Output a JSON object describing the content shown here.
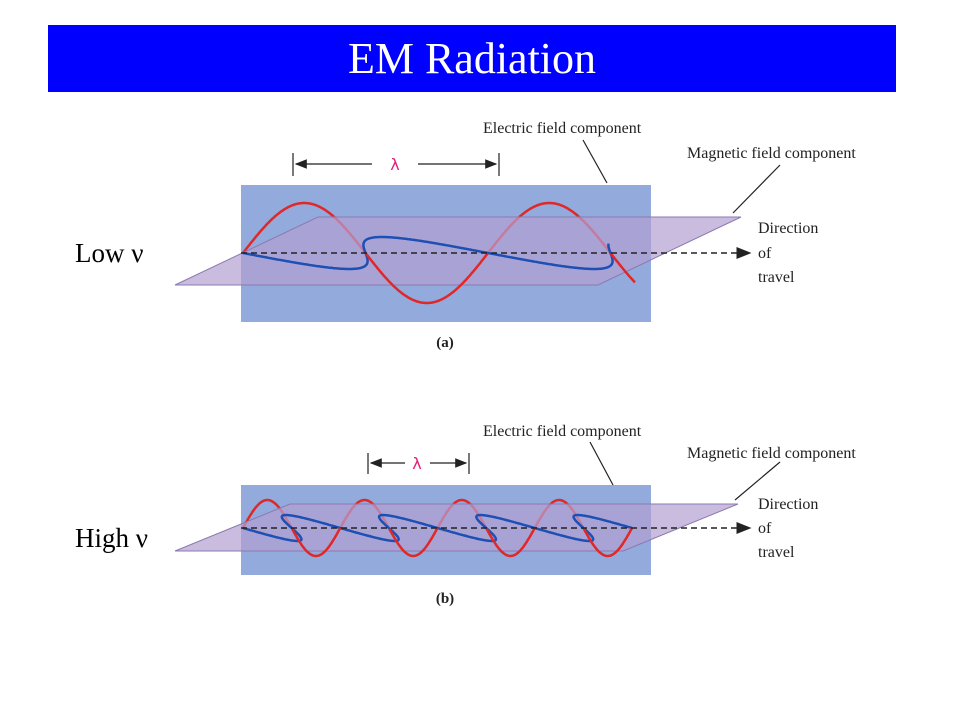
{
  "slide": {
    "title": "EM Radiation",
    "low_label": "Low ν",
    "high_label": "High ν"
  },
  "figure_a": {
    "electric_label": "Electric field component",
    "magnetic_label": "Magnetic field component",
    "direction_lines": [
      "Direction",
      "of",
      "travel"
    ],
    "wavelength_symbol": "λ",
    "caption": "(a)",
    "cycles_shown": 1.6
  },
  "figure_b": {
    "electric_label": "Electric field component",
    "magnetic_label": "Magnetic field component",
    "direction_lines": [
      "Direction",
      "of",
      "travel"
    ],
    "wavelength_symbol": "λ",
    "caption": "(b)",
    "cycles_shown": 4.0
  },
  "colors": {
    "title_background": "#0000ff",
    "box_fill": "#92aadc",
    "plane_fill": "#b4a0d2",
    "electric_wave": "#e02828",
    "magnetic_wave": "#1e50b4",
    "wavelength_label": "#e0207a"
  }
}
